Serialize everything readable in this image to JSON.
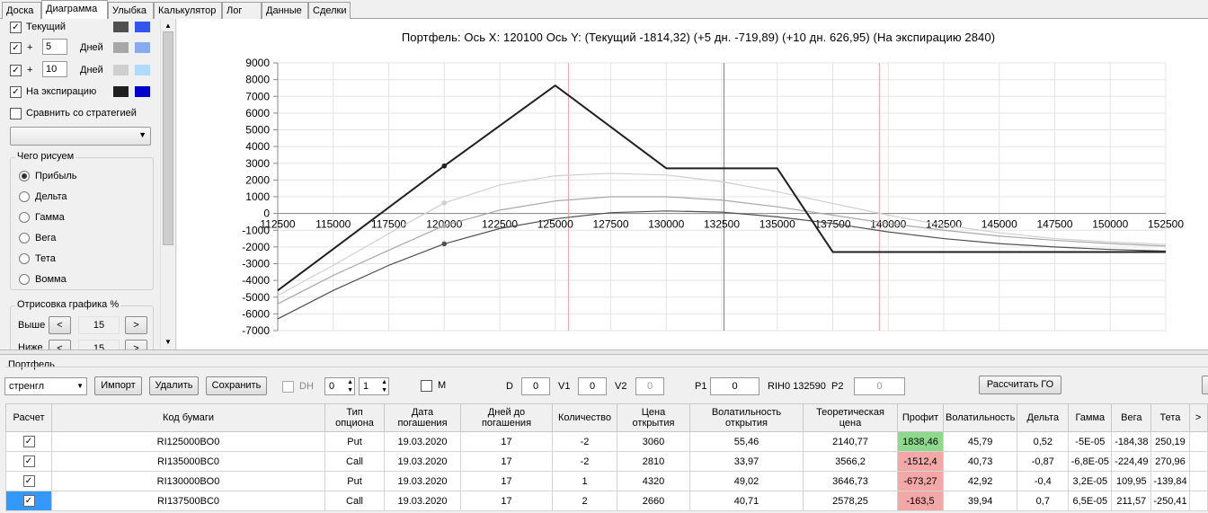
{
  "tabs": [
    "Доска",
    "Диаграмма",
    "Улыбка",
    "Калькулятор",
    "Лог",
    "Данные",
    "Сделки"
  ],
  "active_tab": 1,
  "left": {
    "current_label": "Текущий",
    "plus1": "+",
    "plus1_value": "5",
    "days1": "Дней",
    "plus2": "+",
    "plus2_value": "10",
    "days2": "Дней",
    "expiry_label": "На экспирацию",
    "compare_label": "Сравнить со стратегией",
    "draw_group": "Чего рисуем",
    "radios": [
      "Прибыль",
      "Дельта",
      "Гамма",
      "Вега",
      "Тета",
      "Вомма"
    ],
    "render_group": "Отрисовка графика %",
    "above_label": "Выше",
    "above_value": "15",
    "below_label": "Ниже",
    "below_value": "15",
    "prev": "<",
    "next": ">"
  },
  "colors": {
    "current_dark": "#505050",
    "current_light": "#3355ee",
    "plus5_dark": "#a8a8a8",
    "plus5_light": "#88aaf0",
    "plus10_dark": "#cfcfcf",
    "plus10_light": "#b0dafa",
    "exp_dark": "#202020",
    "exp_light": "#0000c8",
    "profit_pos": "#8ed98e",
    "profit_neg": "#f4a7a7"
  },
  "chart_title": "Портфель: Ось X:  120100  Ось Y:   (Текущий -1814,32)  (+5 дн. -719,89)  (+10 дн. 626,95)  (На экспирацию 2840)",
  "chart_data": {
    "type": "line",
    "title": "Портфель: Ось X:  120100  Ось Y:   (Текущий -1814,32)  (+5 дн. -719,89)  (+10 дн. 626,95)  (На экспирацию 2840)",
    "xlim": [
      112500,
      152500
    ],
    "ylim": [
      -7000,
      9000
    ],
    "x_ticks": [
      112500,
      115000,
      117500,
      120000,
      122500,
      125000,
      127500,
      130000,
      132500,
      135000,
      137500,
      140000,
      142500,
      145000,
      147500,
      150000,
      152500
    ],
    "y_ticks": [
      9000,
      8000,
      7000,
      6000,
      5000,
      4000,
      3000,
      2000,
      1000,
      0,
      -1000,
      -2000,
      -3000,
      -4000,
      -5000,
      -6000,
      -7000
    ],
    "vlines": [
      {
        "x": 125600,
        "color": "pink"
      },
      {
        "x": 132600,
        "color": "steelblue"
      },
      {
        "x": 139600,
        "color": "pink"
      }
    ],
    "series": [
      {
        "color": "#202020",
        "x": [
          112500,
          120000,
          125000,
          130000,
          135000,
          137500,
          152500
        ],
        "y": [
          -4600,
          2840,
          7650,
          2700,
          2700,
          -2300,
          -2300
        ]
      },
      {
        "color": "#505050",
        "x": [
          112500,
          115000,
          117500,
          120000,
          122500,
          125000,
          127500,
          130000,
          132500,
          135000,
          137500,
          140000,
          142500,
          145000,
          147500,
          150000,
          152500
        ],
        "y": [
          -6300,
          -4600,
          -3100,
          -1814,
          -900,
          -320,
          50,
          150,
          80,
          -200,
          -600,
          -1100,
          -1500,
          -1800,
          -2000,
          -2150,
          -2250
        ]
      },
      {
        "color": "#a8a8a8",
        "x": [
          112500,
          115000,
          117500,
          120000,
          122500,
          125000,
          127500,
          130000,
          132500,
          135000,
          137500,
          140000,
          142500,
          145000,
          147500,
          150000,
          152500
        ],
        "y": [
          -5400,
          -3700,
          -2200,
          -720,
          200,
          750,
          1000,
          1000,
          800,
          400,
          -100,
          -600,
          -1000,
          -1350,
          -1600,
          -1800,
          -1950
        ]
      },
      {
        "color": "#cfcfcf",
        "x": [
          112500,
          115000,
          117500,
          120000,
          122500,
          125000,
          127500,
          130000,
          132500,
          135000,
          137500,
          140000,
          142500,
          145000,
          147500,
          150000,
          152500
        ],
        "y": [
          -4900,
          -3100,
          -1200,
          627,
          1700,
          2250,
          2400,
          2300,
          1900,
          1300,
          600,
          -100,
          -700,
          -1150,
          -1500,
          -1700,
          -1850
        ]
      }
    ],
    "points": [
      {
        "x": 120000,
        "y": 2840,
        "color": "#202020"
      },
      {
        "x": 120000,
        "y": -1814,
        "color": "#505050"
      },
      {
        "x": 120000,
        "y": -720,
        "color": "#a8a8a8"
      },
      {
        "x": 120000,
        "y": 627,
        "color": "#cfcfcf"
      }
    ]
  },
  "portfolio": {
    "group_label": "Портфель",
    "strategy": "стренгл",
    "import": "Импорт",
    "delete": "Удалить",
    "save": "Сохранить",
    "dh": "DH",
    "spin1": "0",
    "spin2": "1",
    "m": "M",
    "d_label": "D",
    "d_value": "0",
    "v1_label": "V1",
    "v1_value": "0",
    "v2_label": "V2",
    "v2_value": "0",
    "p1_label": "P1",
    "p1_value": "0",
    "rih": "RIH0 132590",
    "p2_label": "P2",
    "p2_value": "0",
    "calc_go": "Рассчитать ГО"
  },
  "grid": {
    "headers": [
      "Расчет",
      "Код бумаги",
      "Тип опциона",
      "Дата погашения",
      "Дней до погашения",
      "Количество",
      "Цена открытия",
      "Волатильность открытия",
      "Теоретическая цена",
      "Профит",
      "Волатильность",
      "Дельта",
      "Гамма",
      "Вега",
      "Тета"
    ],
    "rows": [
      [
        "RI125000BO0",
        "Put",
        "19.03.2020",
        "17",
        "-2",
        "3060",
        "55,46",
        "2140,77",
        "1838,46",
        "45,79",
        "0,52",
        "-5E-05",
        "-184,38",
        "250,19"
      ],
      [
        "RI135000BC0",
        "Call",
        "19.03.2020",
        "17",
        "-2",
        "2810",
        "33,97",
        "3566,2",
        "-1512,4",
        "40,73",
        "-0,87",
        "-6,8E-05",
        "-224,49",
        "270,96"
      ],
      [
        "RI130000BO0",
        "Put",
        "19.03.2020",
        "17",
        "1",
        "4320",
        "49,02",
        "3646,73",
        "-673,27",
        "42,92",
        "-0,4",
        "3,2E-05",
        "109,95",
        "-139,84"
      ],
      [
        "RI137500BC0",
        "Call",
        "19.03.2020",
        "17",
        "2",
        "2660",
        "40,71",
        "2578,25",
        "-163,5",
        "39,94",
        "0,7",
        "6,5E-05",
        "211,57",
        "-250,41"
      ]
    ]
  }
}
